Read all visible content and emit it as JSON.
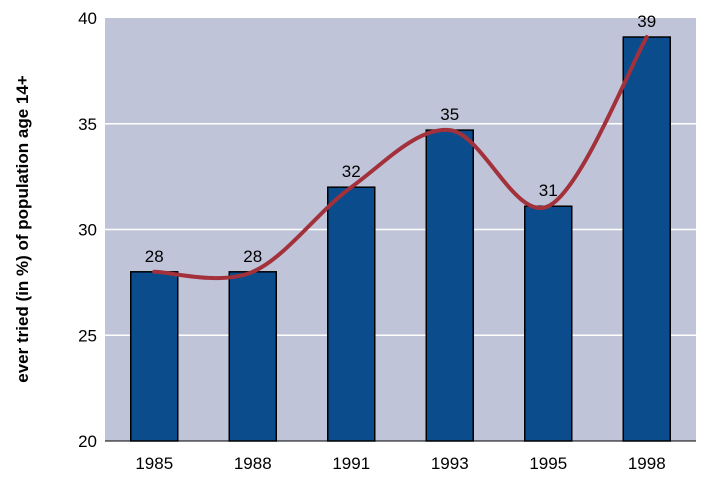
{
  "chart_data": {
    "type": "bar",
    "categories": [
      "1985",
      "1988",
      "1991",
      "1993",
      "1995",
      "1998"
    ],
    "values": [
      28,
      28,
      32,
      34.7,
      31.1,
      39.1
    ],
    "data_labels": [
      "28",
      "28",
      "32",
      "35",
      "31",
      "39"
    ],
    "title": "",
    "xlabel": "",
    "ylabel": "ever tried (in %) of population age 14+",
    "ylim": [
      20,
      40
    ],
    "yticks": [
      "20",
      "25",
      "30",
      "35",
      "40"
    ],
    "grid": true,
    "trend_line": true,
    "colors": {
      "plot_background": "#C0C4D9",
      "bar_fill": "#0A4C8C",
      "bar_stroke": "#000000",
      "gridline": "#FFFFFF",
      "trend_line": "#A3313B"
    }
  }
}
